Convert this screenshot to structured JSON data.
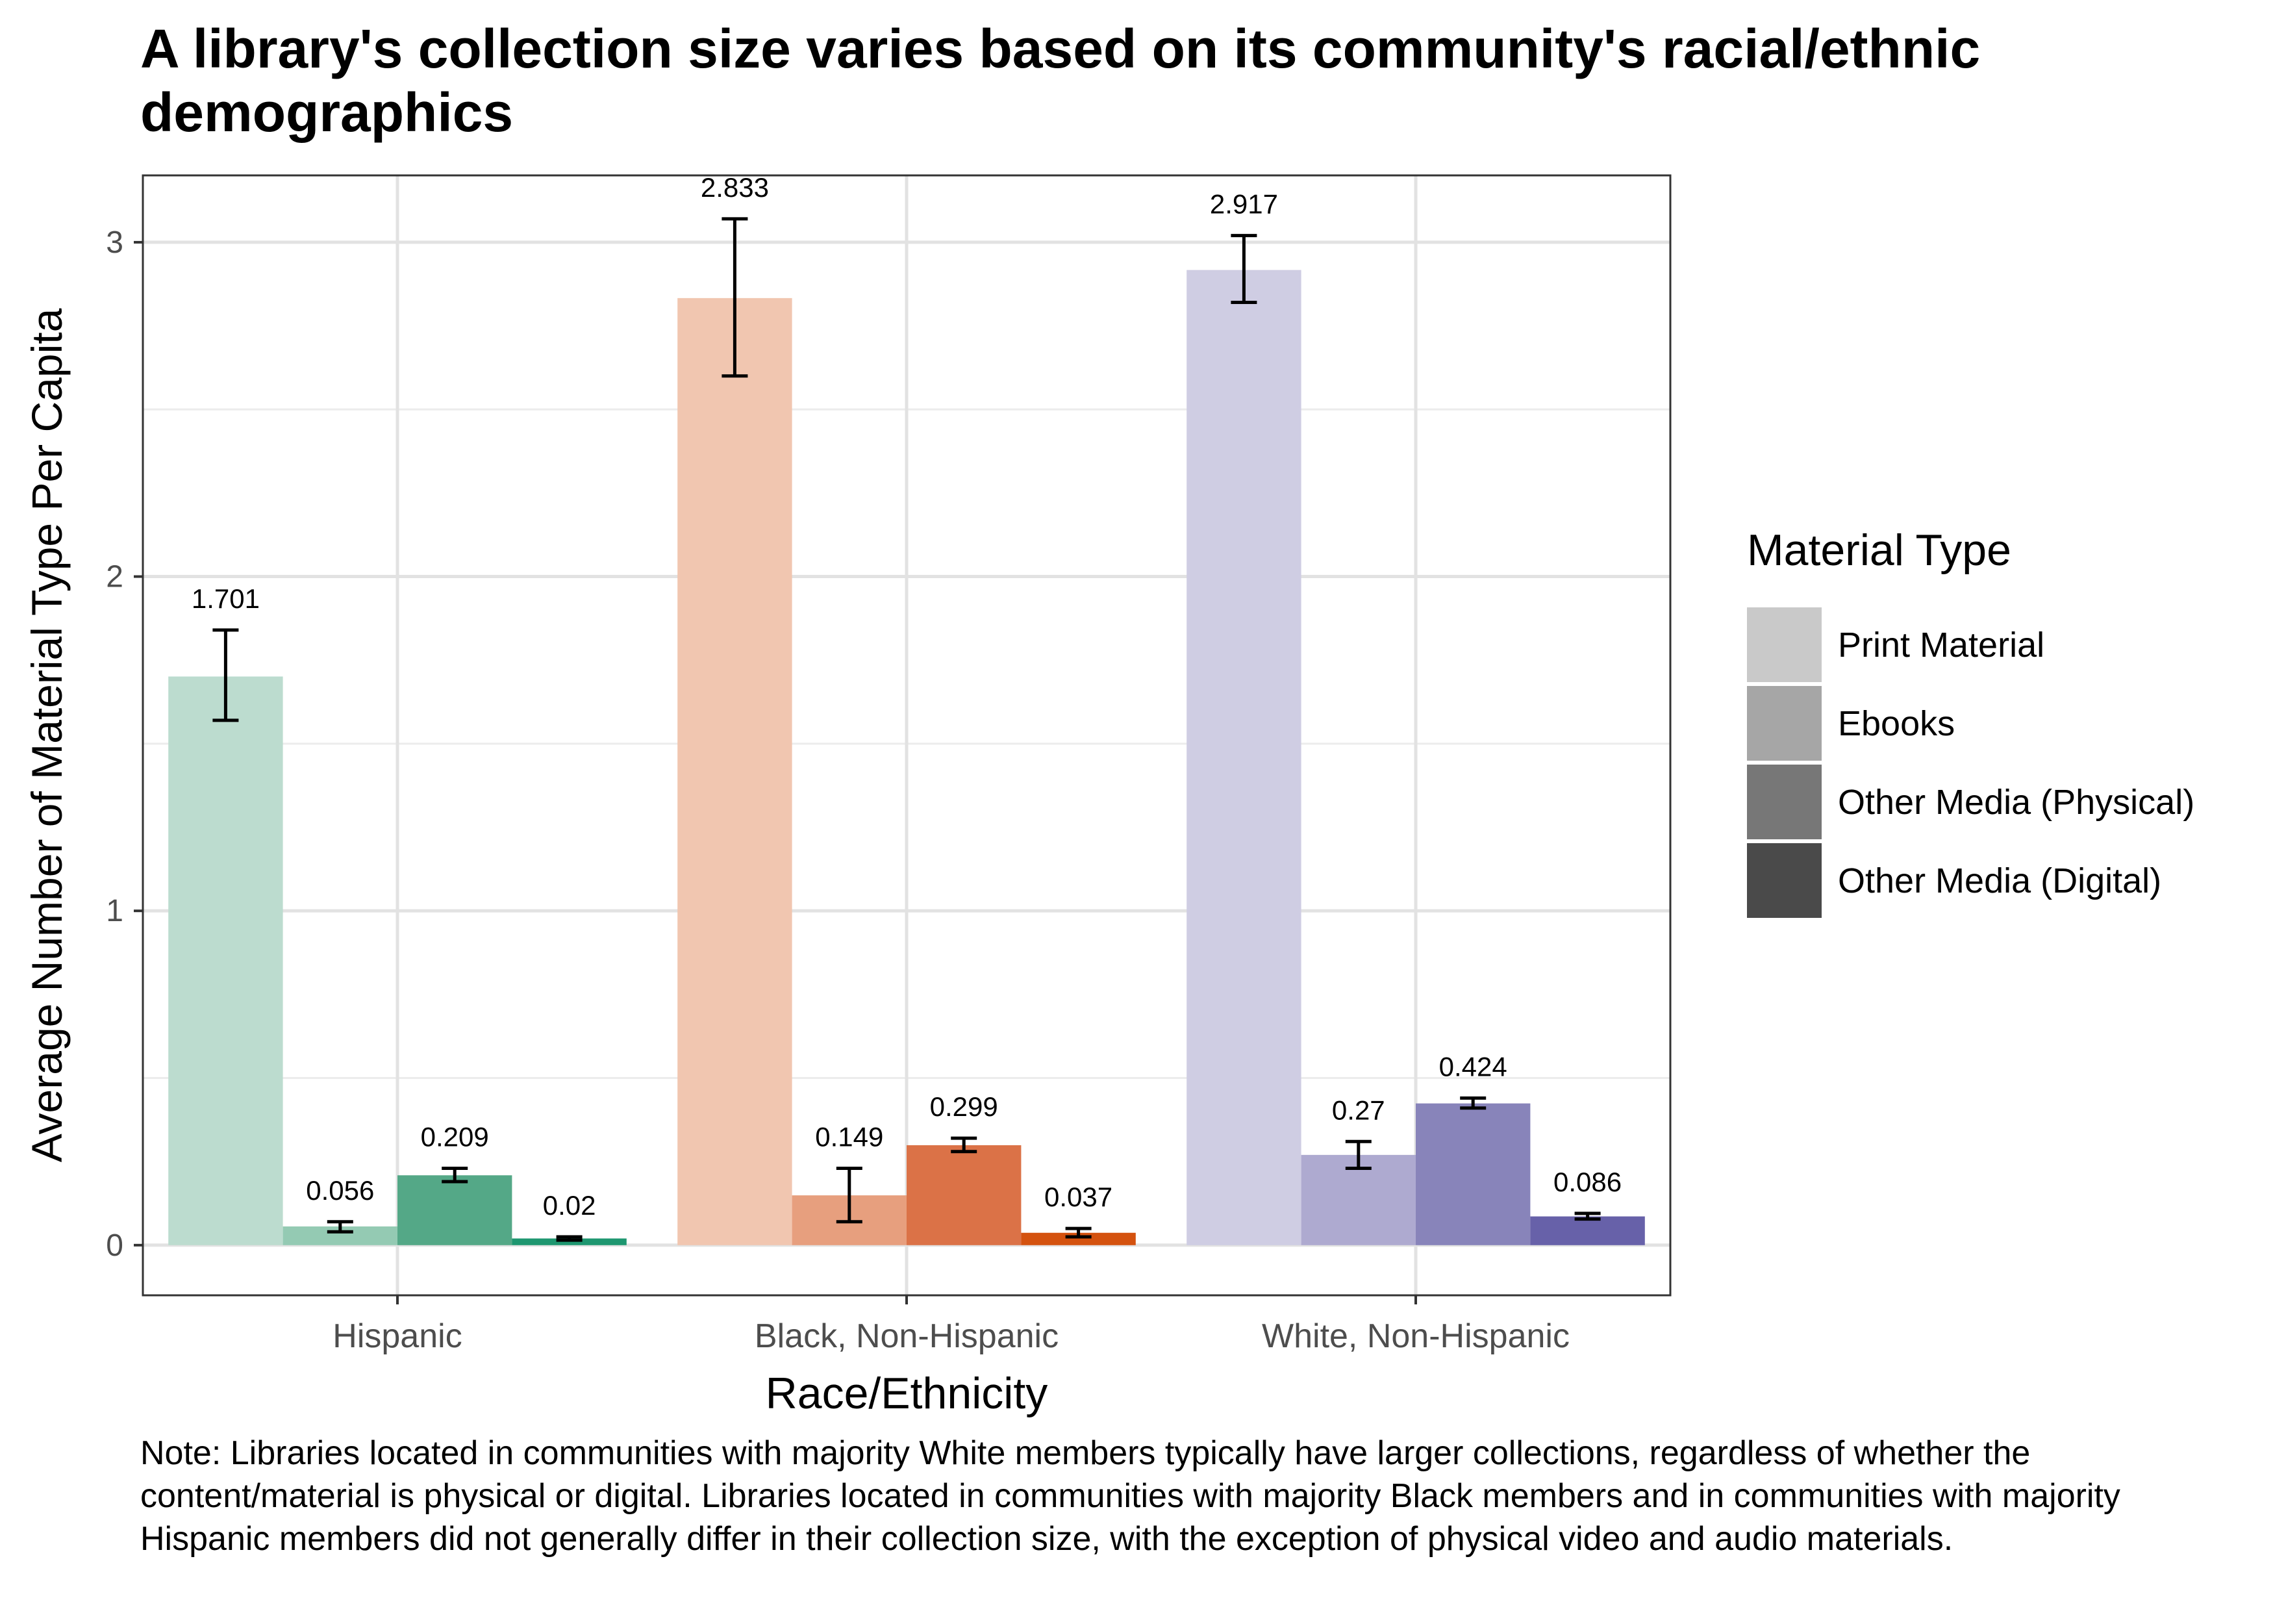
{
  "chart_data": {
    "type": "bar",
    "title": "A library's collection size varies based on its community's racial/ethnic demographics",
    "xlabel": "Race/Ethnicity",
    "ylabel": "Average Number of Material Type Per Capita",
    "ylim": [
      -0.15,
      3.2
    ],
    "yticks": [
      0,
      1,
      2,
      3
    ],
    "grid": true,
    "legend_position": "right",
    "legend_title": "Material Type",
    "categories": [
      "Hispanic",
      "Black, Non-Hispanic",
      "White, Non-Hispanic"
    ],
    "category_palettes": [
      [
        "#bcdccf",
        "#94cab3",
        "#54a887",
        "#1e9770"
      ],
      [
        "#f1c6b0",
        "#e79f7e",
        "#db7247",
        "#d4520f"
      ],
      [
        "#cfcde3",
        "#aeaad0",
        "#8884ba",
        "#6761a9"
      ]
    ],
    "series": [
      {
        "name": "Print Material",
        "legend_color": "#c9c9c9",
        "values": [
          1.701,
          2.833,
          2.917
        ],
        "labels": [
          "1.701",
          "2.833",
          "2.917"
        ],
        "err_low": [
          1.57,
          2.6,
          2.82
        ],
        "err_high": [
          1.84,
          3.07,
          3.02
        ]
      },
      {
        "name": "Ebooks",
        "legend_color": "#a6a6a6",
        "values": [
          0.056,
          0.149,
          0.27
        ],
        "labels": [
          "0.056",
          "0.149",
          "0.27"
        ],
        "err_low": [
          0.04,
          0.07,
          0.23
        ],
        "err_high": [
          0.07,
          0.23,
          0.31
        ]
      },
      {
        "name": "Other Media (Physical)",
        "legend_color": "#777777",
        "values": [
          0.209,
          0.299,
          0.424
        ],
        "labels": [
          "0.209",
          "0.299",
          "0.424"
        ],
        "err_low": [
          0.19,
          0.28,
          0.41
        ],
        "err_high": [
          0.23,
          0.32,
          0.44
        ]
      },
      {
        "name": "Other Media (Digital)",
        "legend_color": "#4a4a4a",
        "values": [
          0.02,
          0.037,
          0.086
        ],
        "labels": [
          "0.02",
          "0.037",
          "0.086"
        ],
        "err_low": [
          0.015,
          0.025,
          0.078
        ],
        "err_high": [
          0.025,
          0.05,
          0.095
        ]
      }
    ]
  },
  "note": "Note: Libraries located in communities with majority White members typically have larger collections, regardless of whether the content/material is physical or digital. Libraries located in communities with majority Black members and in communities with majority Hispanic members did not generally differ in their collection size, with the exception of physical video and audio materials."
}
